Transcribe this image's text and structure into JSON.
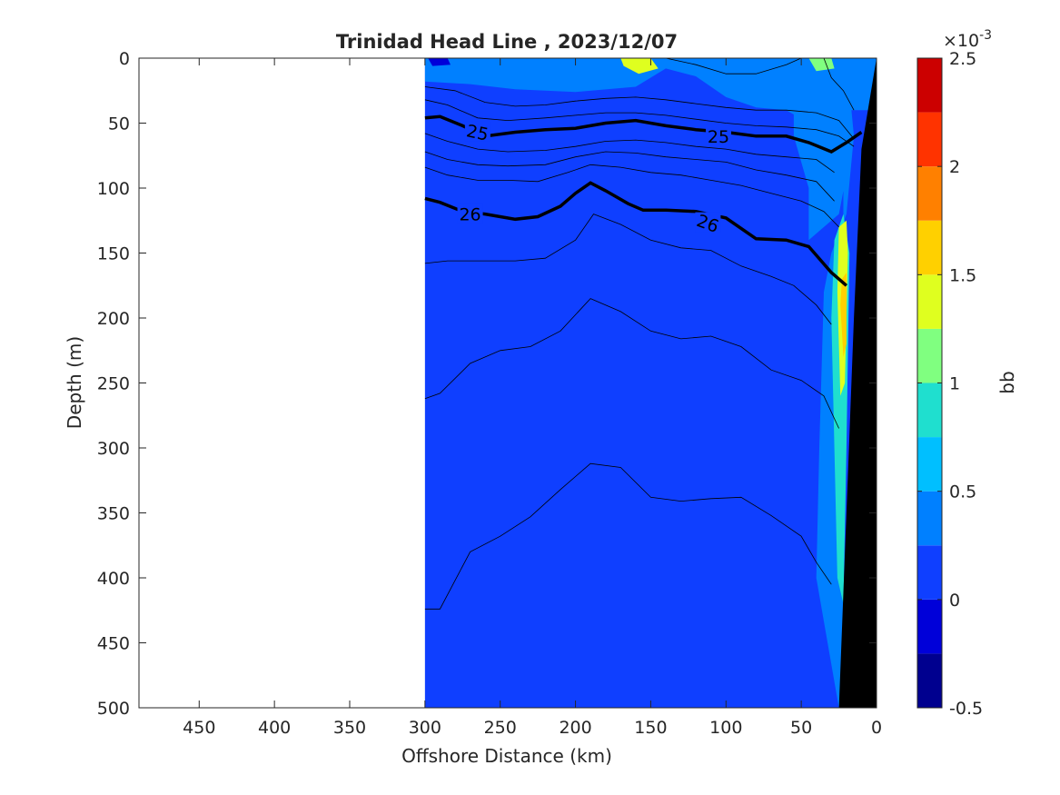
{
  "chart_data": {
    "type": "heatmap",
    "title": "Trinidad Head Line , 2023/12/07",
    "xlabel": "Offshore Distance (km)",
    "ylabel": "Depth (m)",
    "xlim": [
      490,
      0
    ],
    "ylim": [
      0,
      500
    ],
    "x_reversed": true,
    "y_reversed": true,
    "x_ticks": [
      450,
      400,
      350,
      300,
      250,
      200,
      150,
      100,
      50,
      0
    ],
    "y_ticks": [
      0,
      50,
      100,
      150,
      200,
      250,
      300,
      350,
      400,
      450,
      500
    ],
    "data_extent_x": [
      300,
      0
    ],
    "colorbar": {
      "label": "bb",
      "exponent_label": "×10",
      "exponent_power": "-3",
      "range": [
        -0.5,
        2.5
      ],
      "tick_values": [
        -0.5,
        0,
        0.5,
        1,
        1.5,
        2,
        2.5
      ],
      "tick_labels": [
        "-0.5",
        "0",
        "0.5",
        "1",
        "1.5",
        "2",
        "2.5"
      ],
      "levels": [
        {
          "from": -0.5,
          "to": -0.25,
          "color": "#00008f"
        },
        {
          "from": -0.25,
          "to": 0,
          "color": "#0000d9"
        },
        {
          "from": 0,
          "to": 0.25,
          "color": "#0f3fff"
        },
        {
          "from": 0.25,
          "to": 0.5,
          "color": "#0080ff"
        },
        {
          "from": 0.5,
          "to": 0.75,
          "color": "#00bfff"
        },
        {
          "from": 0.75,
          "to": 1.0,
          "color": "#1fdfcf"
        },
        {
          "from": 1.0,
          "to": 1.25,
          "color": "#80ff80"
        },
        {
          "from": 1.25,
          "to": 1.5,
          "color": "#dfff1f"
        },
        {
          "from": 1.5,
          "to": 1.75,
          "color": "#ffd000"
        },
        {
          "from": 1.75,
          "to": 2.0,
          "color": "#ff8000"
        },
        {
          "from": 2.0,
          "to": 2.25,
          "color": "#ff3300"
        },
        {
          "from": 2.25,
          "to": 2.5,
          "color": "#cc0000"
        }
      ]
    },
    "background_field_level": 0.125,
    "regions": [
      {
        "name": "surface-layer",
        "level": 0.375,
        "outline": [
          [
            300,
            0
          ],
          [
            200,
            0
          ],
          [
            140,
            0
          ],
          [
            90,
            0
          ],
          [
            60,
            0
          ],
          [
            40,
            0
          ],
          [
            25,
            0
          ],
          [
            25,
            50
          ],
          [
            30,
            80
          ],
          [
            40,
            100
          ],
          [
            35,
            140
          ],
          [
            300,
            140
          ]
        ],
        "note_exclude": true
      },
      {
        "name": "nearshore-band",
        "level": 0.375,
        "outline": [
          [
            55,
            0
          ],
          [
            30,
            0
          ],
          [
            20,
            0
          ],
          [
            15,
            60
          ],
          [
            20,
            120
          ],
          [
            30,
            150
          ],
          [
            35,
            180
          ],
          [
            38,
            300
          ],
          [
            40,
            400
          ],
          [
            28,
            480
          ],
          [
            25,
            500
          ],
          [
            22,
            500
          ],
          [
            22,
            100
          ],
          [
            30,
            60
          ],
          [
            55,
            30
          ]
        ]
      },
      {
        "name": "nearshore-core",
        "level": 0.875,
        "outline": [
          [
            28,
            140
          ],
          [
            22,
            120
          ],
          [
            18,
            150
          ],
          [
            20,
            300
          ],
          [
            22,
            420
          ],
          [
            26,
            400
          ],
          [
            28,
            300
          ],
          [
            30,
            200
          ]
        ]
      },
      {
        "name": "nearshore-peak",
        "level": 1.375,
        "outline": [
          [
            25,
            130
          ],
          [
            20,
            125
          ],
          [
            19,
            150
          ],
          [
            21,
            250
          ],
          [
            24,
            260
          ],
          [
            26,
            180
          ]
        ]
      },
      {
        "name": "bottom-anomaly",
        "level": 1.625,
        "outline": [
          [
            23,
            170
          ],
          [
            20,
            165
          ],
          [
            20,
            220
          ],
          [
            22,
            230
          ],
          [
            24,
            190
          ]
        ]
      },
      {
        "name": "surface-patch-1",
        "level": 1.375,
        "outline": [
          [
            170,
            0
          ],
          [
            150,
            0
          ],
          [
            145,
            8
          ],
          [
            158,
            12
          ],
          [
            168,
            6
          ]
        ]
      },
      {
        "name": "surface-patch-2",
        "level": 1.125,
        "outline": [
          [
            45,
            0
          ],
          [
            30,
            0
          ],
          [
            28,
            8
          ],
          [
            40,
            10
          ]
        ]
      },
      {
        "name": "surface-patch-3",
        "level": -0.125,
        "outline": [
          [
            298,
            0
          ],
          [
            285,
            0
          ],
          [
            283,
            5
          ],
          [
            295,
            6
          ]
        ]
      }
    ],
    "density_contours": [
      {
        "label": "25",
        "bold": true,
        "x": [
          300,
          290,
          275,
          260,
          240,
          220,
          200,
          180,
          160,
          140,
          120,
          100,
          80,
          60,
          45,
          30,
          20,
          10
        ],
        "y": [
          46,
          45,
          52,
          60,
          57,
          55,
          54,
          50,
          48,
          52,
          55,
          57,
          60,
          60,
          65,
          72,
          65,
          57
        ]
      },
      {
        "label": "26",
        "bold": true,
        "x": [
          300,
          290,
          275,
          260,
          240,
          225,
          210,
          200,
          190,
          180,
          165,
          155,
          140,
          120,
          100,
          80,
          60,
          45,
          30,
          20
        ],
        "y": [
          108,
          111,
          118,
          120,
          124,
          122,
          114,
          104,
          96,
          102,
          112,
          117,
          117,
          118,
          123,
          139,
          140,
          145,
          165,
          175
        ]
      }
    ],
    "thin_contours": [
      {
        "x": [
          300,
          280,
          260,
          240,
          220,
          200,
          180,
          160,
          140,
          120,
          100,
          80,
          60,
          40,
          25,
          15
        ],
        "y": [
          22,
          25,
          34,
          37,
          36,
          33,
          31,
          30,
          32,
          35,
          38,
          40,
          40,
          42,
          48,
          62
        ]
      },
      {
        "x": [
          300,
          285,
          265,
          245,
          220,
          200,
          180,
          160,
          140,
          120,
          100,
          80,
          60,
          40,
          25,
          15
        ],
        "y": [
          32,
          36,
          46,
          48,
          46,
          44,
          42,
          42,
          44,
          47,
          50,
          52,
          53,
          55,
          60,
          68
        ]
      },
      {
        "x": [
          300,
          285,
          265,
          245,
          220,
          200,
          180,
          160,
          140,
          120,
          100,
          80,
          60,
          40,
          28
        ],
        "y": [
          58,
          64,
          70,
          72,
          71,
          68,
          64,
          63,
          65,
          68,
          70,
          74,
          76,
          78,
          88
        ]
      },
      {
        "x": [
          300,
          285,
          265,
          245,
          220,
          200,
          180,
          160,
          140,
          120,
          100,
          80,
          60,
          40,
          28
        ],
        "y": [
          72,
          78,
          82,
          83,
          82,
          76,
          72,
          73,
          76,
          78,
          80,
          86,
          90,
          95,
          110
        ]
      },
      {
        "x": [
          300,
          285,
          265,
          245,
          225,
          205,
          190,
          170,
          150,
          130,
          110,
          90,
          70,
          50,
          35,
          25
        ],
        "y": [
          84,
          90,
          94,
          94,
          95,
          88,
          82,
          84,
          88,
          90,
          94,
          98,
          104,
          110,
          118,
          130
        ]
      },
      {
        "x": [
          300,
          285,
          265,
          240,
          220,
          200,
          188,
          170,
          150,
          130,
          110,
          90,
          70,
          55,
          40,
          30
        ],
        "y": [
          158,
          156,
          156,
          156,
          154,
          140,
          120,
          128,
          140,
          146,
          148,
          160,
          168,
          175,
          190,
          205
        ]
      },
      {
        "x": [
          300,
          290,
          270,
          250,
          230,
          210,
          190,
          170,
          150,
          130,
          110,
          90,
          70,
          50,
          35,
          25
        ],
        "y": [
          262,
          258,
          235,
          225,
          222,
          210,
          185,
          195,
          210,
          216,
          214,
          222,
          240,
          248,
          260,
          285
        ]
      },
      {
        "x": [
          300,
          290,
          270,
          250,
          230,
          210,
          190,
          170,
          150,
          130,
          110,
          90,
          70,
          50,
          40,
          30
        ],
        "y": [
          424,
          424,
          380,
          368,
          353,
          332,
          312,
          315,
          338,
          341,
          339,
          338,
          352,
          368,
          388,
          405
        ]
      },
      {
        "x": [
          35,
          30,
          22,
          15
        ],
        "y": [
          0,
          15,
          25,
          40
        ]
      },
      {
        "x": [
          140,
          120,
          100,
          80,
          60,
          50
        ],
        "y": [
          0,
          5,
          12,
          12,
          5,
          0
        ]
      }
    ],
    "bathymetry": {
      "color": "#000000",
      "x": [
        0,
        0,
        25,
        20,
        15,
        10,
        0
      ],
      "y": [
        0,
        500,
        500,
        350,
        200,
        70,
        0
      ]
    }
  }
}
